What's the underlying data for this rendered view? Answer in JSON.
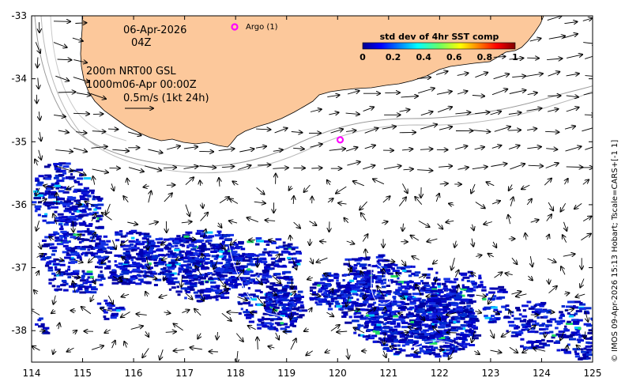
{
  "map": {
    "date": "06-Apr-2026",
    "hour": "04Z",
    "legend_line1": "200m  NRT00 GSL",
    "legend_line2": "1000m06-Apr 00:00Z",
    "scale_label": "0.5m/s (1kt 24h)",
    "argo_label": "Argo (1)",
    "credit": "© IMOS 09-Apr-2026 15:13 Hobart; Tscale=CARS+[-1 1]",
    "colors": {
      "land": "#fcc89b",
      "sst_low": "#00009e",
      "argo": "#ff00ff"
    }
  },
  "colorbar": {
    "title": "std dev of 4hr SST comp",
    "ticks": [
      "0",
      "0.2",
      "0.4",
      "0.6",
      "0.8",
      "1"
    ],
    "range": [
      0,
      1
    ]
  },
  "axes": {
    "x_ticks": [
      "114",
      "115",
      "116",
      "117",
      "118",
      "119",
      "120",
      "121",
      "122",
      "123",
      "124",
      "125"
    ],
    "y_ticks": [
      "-33",
      "-34",
      "-35",
      "-36",
      "-37",
      "-38"
    ],
    "lon_range": [
      114,
      125
    ],
    "lat_range": [
      -38.5,
      -33
    ]
  },
  "argo_float": {
    "lon": 120.05,
    "lat": -34.97
  }
}
